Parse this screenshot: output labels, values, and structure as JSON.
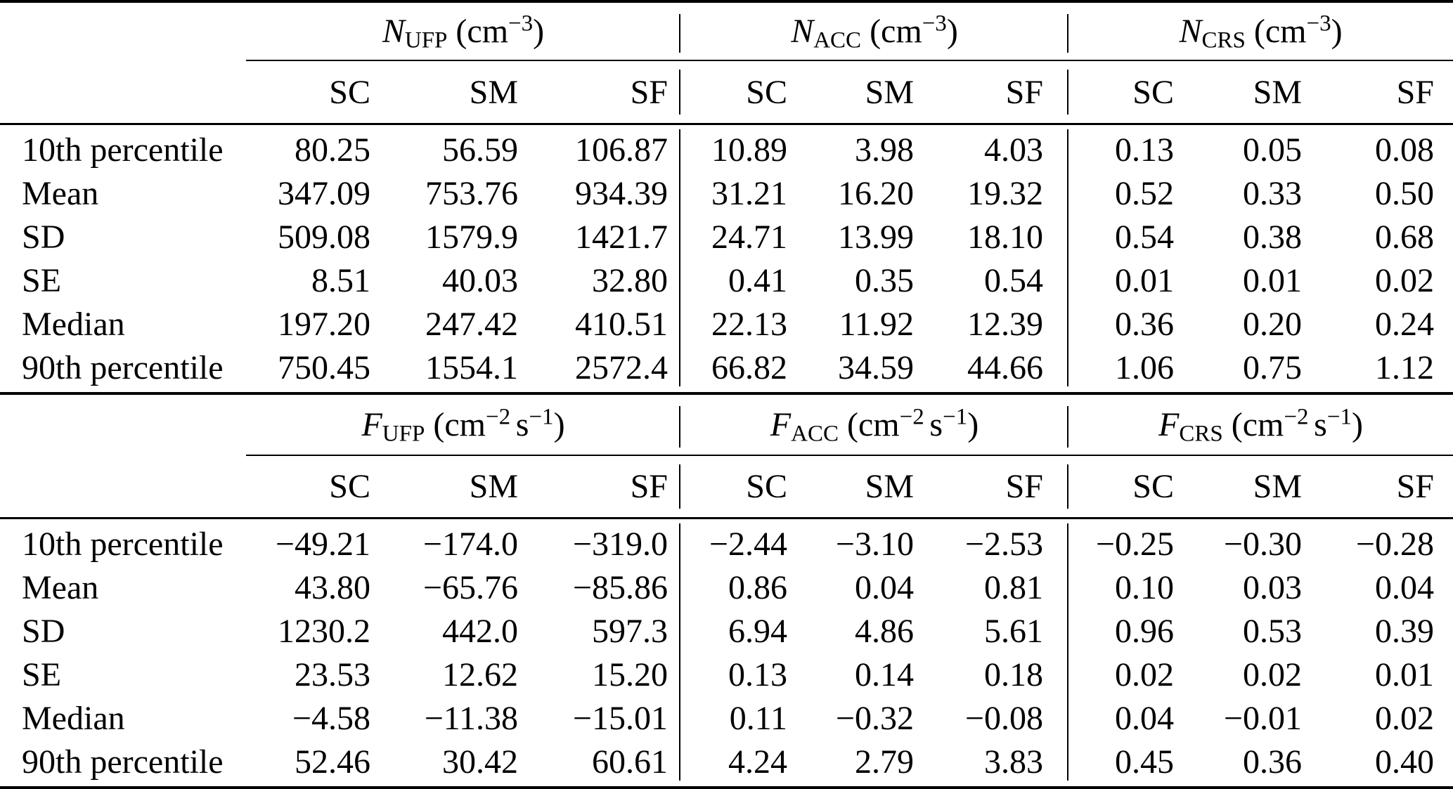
{
  "page": {
    "background_color": "#ffffff",
    "text_color": "#000000",
    "rule_color": "#000000"
  },
  "row_labels": [
    "10th percentile",
    "Mean",
    "SD",
    "SE",
    "Median",
    "90th percentile"
  ],
  "sub_headers": [
    "SC",
    "SM",
    "SF"
  ],
  "tables": [
    {
      "name": "number-concentrations",
      "groups": [
        {
          "symbol": "N",
          "sub": "UFP",
          "unit": [
            {
              "base": "cm",
              "exp": "−3"
            }
          ]
        },
        {
          "symbol": "N",
          "sub": "ACC",
          "unit": [
            {
              "base": "cm",
              "exp": "−3"
            }
          ]
        },
        {
          "symbol": "N",
          "sub": "CRS",
          "unit": [
            {
              "base": "cm",
              "exp": "−3"
            }
          ]
        }
      ],
      "rows": [
        {
          "label": "10th percentile",
          "values": [
            "80.25",
            "56.59",
            "106.87",
            "10.89",
            "3.98",
            "4.03",
            "0.13",
            "0.05",
            "0.08"
          ]
        },
        {
          "label": "Mean",
          "values": [
            "347.09",
            "753.76",
            "934.39",
            "31.21",
            "16.20",
            "19.32",
            "0.52",
            "0.33",
            "0.50"
          ]
        },
        {
          "label": "SD",
          "values": [
            "509.08",
            "1579.9",
            "1421.7",
            "24.71",
            "13.99",
            "18.10",
            "0.54",
            "0.38",
            "0.68"
          ]
        },
        {
          "label": "SE",
          "values": [
            "8.51",
            "40.03",
            "32.80",
            "0.41",
            "0.35",
            "0.54",
            "0.01",
            "0.01",
            "0.02"
          ]
        },
        {
          "label": "Median",
          "values": [
            "197.20",
            "247.42",
            "410.51",
            "22.13",
            "11.92",
            "12.39",
            "0.36",
            "0.20",
            "0.24"
          ]
        },
        {
          "label": "90th percentile",
          "values": [
            "750.45",
            "1554.1",
            "2572.4",
            "66.82",
            "34.59",
            "44.66",
            "1.06",
            "0.75",
            "1.12"
          ]
        }
      ]
    },
    {
      "name": "fluxes",
      "groups": [
        {
          "symbol": "F",
          "sub": "UFP",
          "unit": [
            {
              "base": "cm",
              "exp": "−2"
            },
            {
              "base": "s",
              "exp": "−1"
            }
          ]
        },
        {
          "symbol": "F",
          "sub": "ACC",
          "unit": [
            {
              "base": "cm",
              "exp": "−2"
            },
            {
              "base": "s",
              "exp": "−1"
            }
          ]
        },
        {
          "symbol": "F",
          "sub": "CRS",
          "unit": [
            {
              "base": "cm",
              "exp": "−2"
            },
            {
              "base": "s",
              "exp": "−1"
            }
          ]
        }
      ],
      "rows": [
        {
          "label": "10th percentile",
          "values": [
            "−49.21",
            "−174.0",
            "−319.0",
            "−2.44",
            "−3.10",
            "−2.53",
            "−0.25",
            "−0.30",
            "−0.28"
          ]
        },
        {
          "label": "Mean",
          "values": [
            "43.80",
            "−65.76",
            "−85.86",
            "0.86",
            "0.04",
            "0.81",
            "0.10",
            "0.03",
            "0.04"
          ]
        },
        {
          "label": "SD",
          "values": [
            "1230.2",
            "442.0",
            "597.3",
            "6.94",
            "4.86",
            "5.61",
            "0.96",
            "0.53",
            "0.39"
          ]
        },
        {
          "label": "SE",
          "values": [
            "23.53",
            "12.62",
            "15.20",
            "0.13",
            "0.14",
            "0.18",
            "0.02",
            "0.02",
            "0.01"
          ]
        },
        {
          "label": "Median",
          "values": [
            "−4.58",
            "−11.38",
            "−15.01",
            "0.11",
            "−0.32",
            "−0.08",
            "0.04",
            "−0.01",
            "0.02"
          ]
        },
        {
          "label": "90th percentile",
          "values": [
            "52.46",
            "30.42",
            "60.61",
            "4.24",
            "2.79",
            "3.83",
            "0.45",
            "0.36",
            "0.40"
          ]
        }
      ]
    }
  ]
}
